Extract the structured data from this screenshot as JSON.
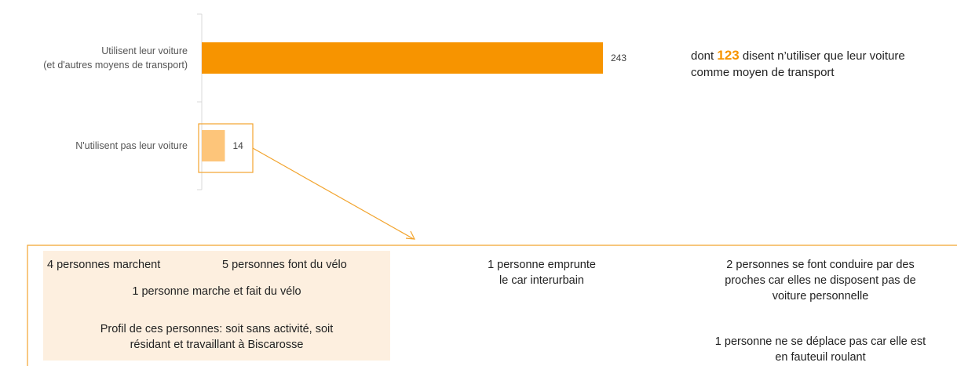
{
  "chart_data": {
    "type": "barh",
    "categories": [
      "Utilisent leur voiture\n(et d'autres moyens de transport)",
      "N'utilisent pas leur voiture"
    ],
    "values": [
      243,
      14
    ],
    "colors": [
      "#f79400",
      "#fdc57a"
    ],
    "xlim": [
      0,
      243
    ],
    "annotation": {
      "prefix": "dont",
      "number": 123,
      "suffix": "disent n’utiliser que leur voiture comme moyen de transport"
    },
    "details": {
      "walk": "4 personnes marchent",
      "bike": "5 personnes font du vélo",
      "walk_bike": "1 personne marche et fait du vélo",
      "profile": "Profil de ces personnes: soit sans activité, soit\nrésidant et travaillant à Biscarosse",
      "bus": "1 personne emprunte\nle car interurbain",
      "driven": "2 personnes se font conduire par des\nproches car elles ne disposent pas de\nvoiture personnelle",
      "wheelchair": "1 personne ne se déplace pas car elle est\nen fauteuil roulant"
    }
  }
}
